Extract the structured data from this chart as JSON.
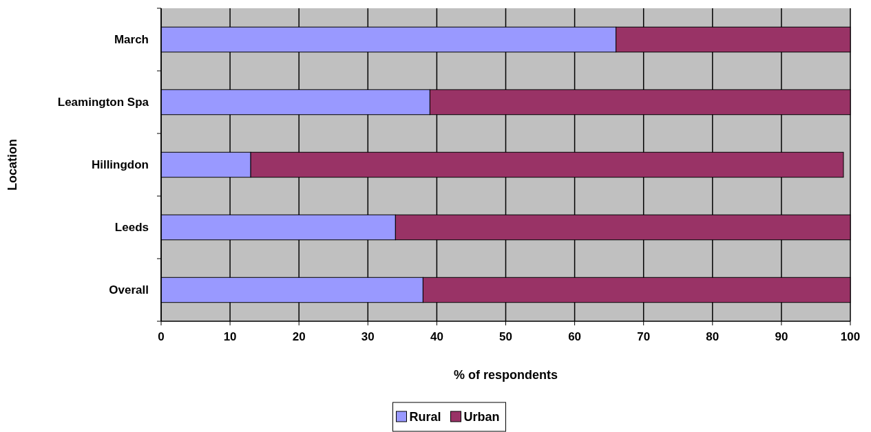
{
  "chart_data": {
    "type": "bar",
    "orientation": "horizontal",
    "stacked": true,
    "categories": [
      "March",
      "Leamington Spa",
      "Hillingdon",
      "Leeds",
      "Overall"
    ],
    "series": [
      {
        "name": "Rural",
        "color": "#9999ff",
        "values": [
          66,
          39,
          13,
          34,
          38
        ]
      },
      {
        "name": "Urban",
        "color": "#993366",
        "values": [
          34,
          61,
          86,
          66,
          62
        ]
      }
    ],
    "xlim": [
      0,
      100
    ],
    "xticks": [
      0,
      10,
      20,
      30,
      40,
      50,
      60,
      70,
      80,
      90,
      100
    ],
    "xlabel": "% of respondents",
    "ylabel": "Location",
    "grid": "x",
    "legend": "bottom"
  }
}
